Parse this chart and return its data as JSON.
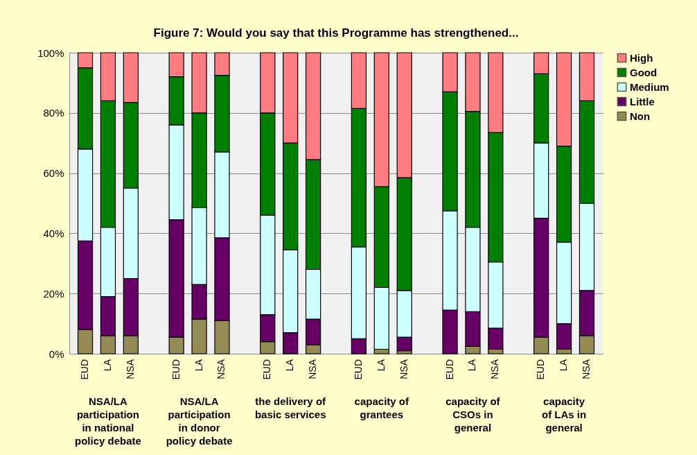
{
  "chart_data": {
    "type": "bar",
    "stacked": true,
    "title": "Figure 7: Would you say that this Programme  has strengthened...",
    "categories": [
      "EUD",
      "LA",
      "NSA",
      "EUD",
      "LA",
      "NSA",
      "EUD",
      "LA",
      "NSA",
      "EUD",
      "LA",
      "NSA",
      "EUD",
      "LA",
      "NSA",
      "EUD",
      "LA",
      "NSA"
    ],
    "annotations": [
      "NSA/LA\nparticipation\nin national\npolicy debate",
      "NSA/LA\nparticipation\nin donor\npolicy debate",
      "the delivery of\nbasic services",
      "capacity of\ngrantees",
      "capacity of\nCSOs in\ngeneral",
      "capacity\nof LAs in\ngeneral"
    ],
    "series": [
      {
        "name": "Non",
        "color": "#948a54",
        "values": [
          8,
          6,
          6,
          5.5,
          11.5,
          11,
          4,
          0,
          3,
          0,
          1.5,
          1,
          0,
          2.5,
          1.5,
          5.5,
          1.5,
          6
        ]
      },
      {
        "name": "Little",
        "color": "#660066",
        "values": [
          29.5,
          13,
          19,
          39,
          11.5,
          27.5,
          9,
          7,
          8.5,
          5,
          0,
          4.5,
          14.5,
          11.5,
          7,
          39.5,
          8.5,
          15
        ]
      },
      {
        "name": "Medium",
        "color": "#ccffff",
        "values": [
          30.5,
          23,
          30,
          31.5,
          25.5,
          28.5,
          33,
          27.5,
          16.5,
          30.5,
          20.5,
          15.5,
          33,
          28,
          22,
          25,
          27,
          29
        ]
      },
      {
        "name": "Good",
        "color": "#008000",
        "values": [
          27,
          42,
          28.5,
          16,
          31.5,
          25.5,
          34,
          35.5,
          36.5,
          46,
          33.5,
          37.5,
          39.5,
          38.5,
          43,
          23,
          32,
          34
        ]
      },
      {
        "name": "High",
        "color": "#ff7c80",
        "values": [
          5,
          16,
          16.5,
          8,
          20,
          7.5,
          20,
          30,
          35.5,
          18.5,
          44.5,
          41.5,
          13,
          19.5,
          26.5,
          7,
          31,
          16
        ]
      }
    ],
    "ylim": [
      0,
      100
    ],
    "yticks": [
      {
        "value": 0,
        "label": "0%"
      },
      {
        "value": 20,
        "label": "20%"
      },
      {
        "value": 40,
        "label": "40%"
      },
      {
        "value": 60,
        "label": "60%"
      },
      {
        "value": 80,
        "label": "80%"
      },
      {
        "value": 100,
        "label": "100%"
      }
    ],
    "grid": "y",
    "legend": "right"
  }
}
